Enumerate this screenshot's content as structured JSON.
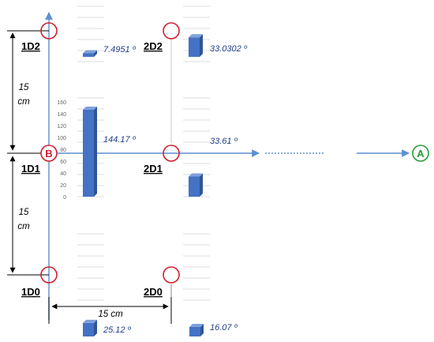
{
  "colors": {
    "axis": "#5b8fd1",
    "bar": "#4472c4",
    "bar_side": "#2e5596",
    "bar_top": "#7fa1dc",
    "circle": "#d01f2e",
    "marker_a": "#2a9a3c",
    "grid": "#d0d0d0",
    "angle_text": "#1f3d8a"
  },
  "nodes": {
    "n1d2": "1D2",
    "n2d2": "2D2",
    "n1d1": "1D1",
    "n2d1": "2D1",
    "n1d0": "1D0",
    "n2d0": "2D0"
  },
  "markers": {
    "b": "B",
    "a": "A"
  },
  "dimensions": {
    "vertical_upper": [
      "15",
      "cm"
    ],
    "vertical_lower": [
      "15",
      "cm"
    ],
    "horizontal": "15 cm"
  },
  "angles": {
    "a_1d2": "7.4951 º",
    "a_2d2": "33.0302 º",
    "a_1d1": "144.17 º",
    "a_2d1": "33.61 º",
    "a_1d0": "25.12 º",
    "a_2d0": "16.07 º"
  },
  "axis_ticks": [
    "160",
    "140",
    "120",
    "100",
    "80",
    "60",
    "40",
    "20",
    "0"
  ],
  "chart_data": {
    "type": "bar",
    "categories": [
      "1D2",
      "2D2",
      "1D1",
      "2D1",
      "1D0",
      "2D0"
    ],
    "values": [
      7.4951,
      33.0302,
      144.17,
      33.61,
      25.12,
      16.07
    ],
    "ylim": [
      0,
      160
    ]
  }
}
